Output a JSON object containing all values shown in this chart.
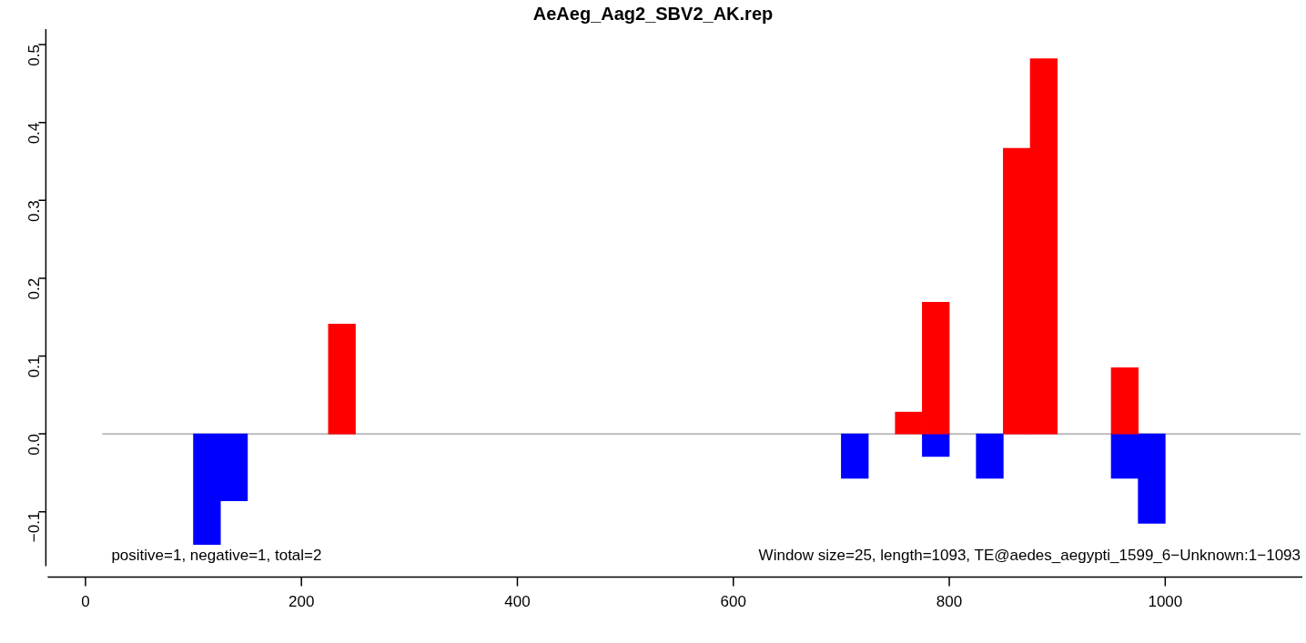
{
  "chart_data": {
    "type": "bar",
    "title": "AeAeg_Aag2_SBV2_AK.rep",
    "series": [
      {
        "color": "#ff0000",
        "x": [
          237.5,
          762.5,
          787.5,
          862.5,
          887.5,
          962.5
        ],
        "values": [
          0.141,
          0.028,
          0.169,
          0.367,
          0.482,
          0.085
        ]
      },
      {
        "color": "#0000ff",
        "x": [
          112.5,
          137.5,
          712.5,
          787.5,
          837.5,
          962.5,
          987.5
        ],
        "values": [
          -0.142,
          -0.086,
          -0.057,
          -0.029,
          -0.057,
          -0.057,
          -0.115
        ]
      }
    ],
    "xlim": [
      -35,
      1127
    ],
    "xticks": [
      0,
      200,
      400,
      600,
      800,
      1000
    ],
    "ylim": [
      -0.17,
      0.52
    ],
    "yticks": [
      {
        "value": -0.1,
        "label": "−0.1"
      },
      {
        "value": 0,
        "label": "0.0"
      },
      {
        "value": 0.1,
        "label": "0.1"
      },
      {
        "value": 0.2,
        "label": "0.2"
      },
      {
        "value": 0.3,
        "label": "0.3"
      },
      {
        "value": 0.4,
        "label": "0.4"
      },
      {
        "value": 0.5,
        "label": "0.5"
      }
    ],
    "ref_lines": [
      {
        "axis": "y",
        "value": 0,
        "color": "#808080"
      }
    ],
    "annotations": [
      "positive=1, negative=1, total=2",
      "Window size=25, length=1093, TE@aedes_aegypti_1599_6−Unknown:1−1093"
    ],
    "grid": false,
    "legend": false
  }
}
